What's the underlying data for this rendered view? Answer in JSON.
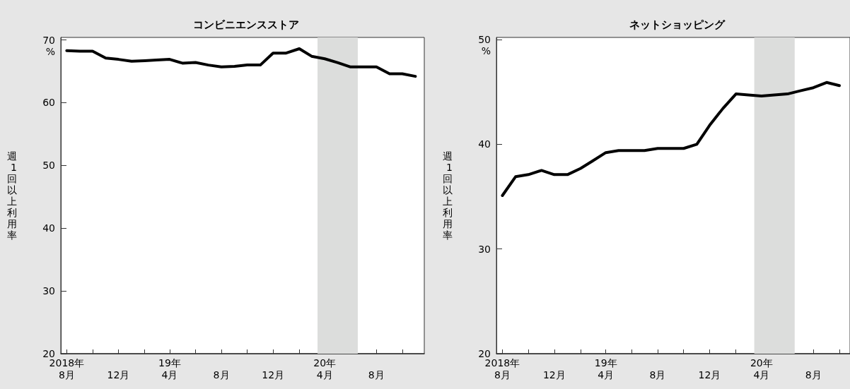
{
  "chart_data": [
    {
      "type": "line",
      "title": "コンビニエンスストア",
      "ylabel": "週1回以上利用率",
      "x": [
        "2018-08",
        "2018-09",
        "2018-10",
        "2018-11",
        "2018-12",
        "2019-01",
        "2019-02",
        "2019-03",
        "2019-04",
        "2019-05",
        "2019-06",
        "2019-07",
        "2019-08",
        "2019-09",
        "2019-10",
        "2019-11",
        "2019-12",
        "2020-01",
        "2020-02",
        "2020-03",
        "2020-04",
        "2020-05",
        "2020-06",
        "2020-07",
        "2020-08",
        "2020-09",
        "2020-10",
        "2020-11"
      ],
      "series": [
        {
          "color": "#000000",
          "values": [
            68.3,
            68.2,
            68.2,
            67.1,
            66.9,
            66.6,
            66.7,
            66.8,
            66.9,
            66.3,
            66.4,
            66.0,
            65.7,
            65.8,
            66.0,
            66.0,
            67.9,
            67.9,
            68.6,
            67.4,
            67.0,
            66.4,
            65.7,
            65.7,
            65.7,
            64.6,
            64.6,
            64.2
          ]
        }
      ],
      "xlim": [
        "2018-07-18",
        "2020-11-22"
      ],
      "xticks": [
        {
          "value": "2018-08",
          "label": "2018年\n8月"
        },
        {
          "value": "2018-10",
          "label": null
        },
        {
          "value": "2018-12",
          "label": "12月"
        },
        {
          "value": "2019-02",
          "label": null
        },
        {
          "value": "2019-04",
          "label": "19年\n4月"
        },
        {
          "value": "2019-06",
          "label": null
        },
        {
          "value": "2019-08",
          "label": "8月"
        },
        {
          "value": "2019-10",
          "label": null
        },
        {
          "value": "2019-12",
          "label": "12月"
        },
        {
          "value": "2020-02",
          "label": null
        },
        {
          "value": "2020-04",
          "label": "20年\n4月"
        },
        {
          "value": "2020-06",
          "label": null
        },
        {
          "value": "2020-08",
          "label": "8月"
        },
        {
          "value": "2020-10",
          "label": null
        }
      ],
      "ylim": [
        20,
        70.4
      ],
      "yticks": [
        20,
        30,
        40,
        50,
        60,
        {
          "value": 70,
          "label": "70\n%"
        }
      ],
      "bands": [
        {
          "axis": "x",
          "from": "2020-03-15",
          "to": "2020-06-18",
          "color": "#dcdddc"
        }
      ],
      "grid": false,
      "marker": "none",
      "line_style": "solid"
    },
    {
      "type": "line",
      "title": "ネットショッピング",
      "ylabel": "週1回以上利用率",
      "x": [
        "2018-08",
        "2018-09",
        "2018-10",
        "2018-11",
        "2018-12",
        "2019-01",
        "2019-02",
        "2019-03",
        "2019-04",
        "2019-05",
        "2019-06",
        "2019-07",
        "2019-08",
        "2019-09",
        "2019-10",
        "2019-11",
        "2019-12",
        "2020-01",
        "2020-02",
        "2020-03",
        "2020-04",
        "2020-05",
        "2020-06",
        "2020-07",
        "2020-08",
        "2020-09",
        "2020-10"
      ],
      "series": [
        {
          "color": "#000000",
          "values": [
            35.1,
            36.9,
            37.1,
            37.5,
            37.1,
            37.1,
            37.7,
            38.4,
            39.2,
            39.4,
            39.4,
            39.4,
            39.6,
            39.6,
            39.6,
            40.0,
            41.8,
            43.4,
            44.8,
            44.7,
            44.6,
            44.7,
            44.8,
            45.1,
            45.4,
            45.9,
            45.6
          ]
        }
      ],
      "xlim": [
        "2018-07-18",
        "2020-10-26"
      ],
      "xticks": [
        {
          "value": "2018-08",
          "label": "2018年\n8月"
        },
        {
          "value": "2018-10",
          "label": null
        },
        {
          "value": "2018-12",
          "label": "12月"
        },
        {
          "value": "2019-02",
          "label": null
        },
        {
          "value": "2019-04",
          "label": "19年\n4月"
        },
        {
          "value": "2019-06",
          "label": null
        },
        {
          "value": "2019-08",
          "label": "8月"
        },
        {
          "value": "2019-10",
          "label": null
        },
        {
          "value": "2019-12",
          "label": "12月"
        },
        {
          "value": "2020-02",
          "label": null
        },
        {
          "value": "2020-04",
          "label": "20年\n4月"
        },
        {
          "value": "2020-06",
          "label": null
        },
        {
          "value": "2020-08",
          "label": "8月"
        },
        {
          "value": "2020-10",
          "label": null
        }
      ],
      "ylim": [
        20,
        50.2
      ],
      "yticks": [
        20,
        30,
        40,
        {
          "value": 50,
          "label": "50\n%"
        }
      ],
      "bands": [
        {
          "axis": "x",
          "from": "2020-03-15",
          "to": "2020-06-18",
          "color": "#dcdddc"
        }
      ],
      "grid": false,
      "marker": "none",
      "line_style": "solid"
    }
  ]
}
